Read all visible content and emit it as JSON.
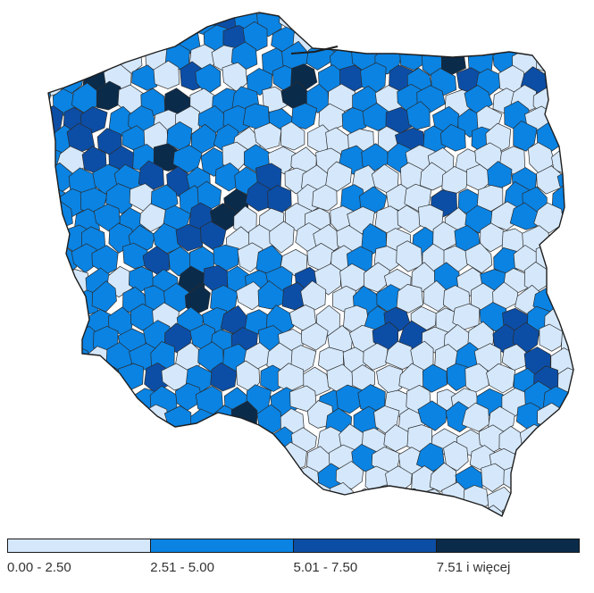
{
  "map": {
    "region": "Poland",
    "units": "powiaty (counties)",
    "classes": [
      {
        "label": "0.00 - 2.50",
        "color": "#d5e8fb"
      },
      {
        "label": "2.51 - 5.00",
        "color": "#0a83e3"
      },
      {
        "label": "5.01 - 7.50",
        "color": "#0c4ea6"
      },
      {
        "label": "7.51 i więcej",
        "color": "#0b2b4a"
      }
    ]
  },
  "legend": {
    "items": [
      {
        "label": "0.00 - 2.50",
        "color": "#d5e8fb"
      },
      {
        "label": "2.51 - 5.00",
        "color": "#0a83e3"
      },
      {
        "label": "5.01 - 7.50",
        "color": "#0c4ea6"
      },
      {
        "label": "7.51 i więcej",
        "color": "#0b2b4a"
      }
    ]
  }
}
